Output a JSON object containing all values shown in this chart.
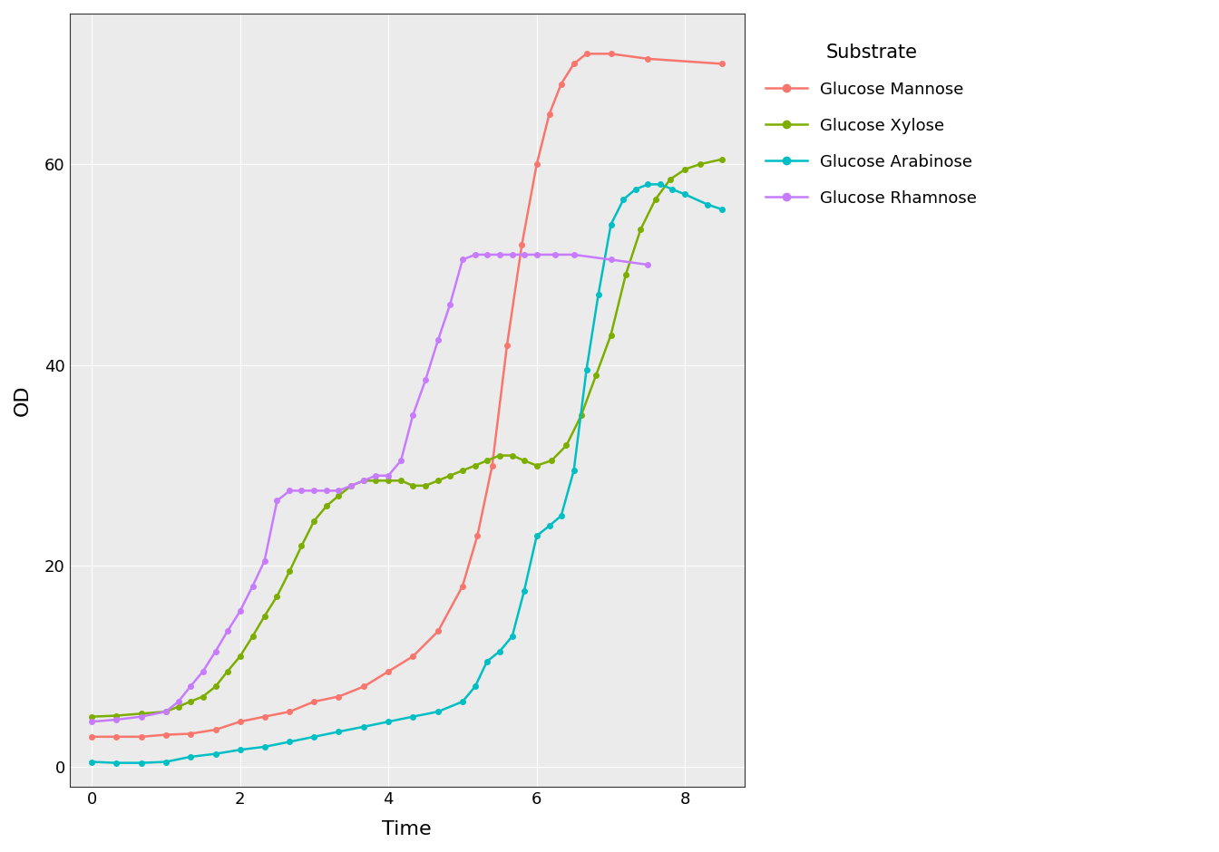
{
  "title": "",
  "xlabel": "Time",
  "ylabel": "OD",
  "legend_title": "Substrate",
  "xlim": [
    -0.3,
    8.8
  ],
  "ylim": [
    -2,
    75
  ],
  "xticks": [
    0,
    2,
    4,
    6,
    8
  ],
  "yticks": [
    0,
    20,
    40,
    60
  ],
  "background_color": "#FFFFFF",
  "panel_color": "#EBEBEB",
  "grid_color": "#FFFFFF",
  "series": {
    "Glucose Mannose": {
      "color": "#F8766D",
      "x": [
        0.0,
        0.33,
        0.67,
        1.0,
        1.33,
        1.67,
        2.0,
        2.33,
        2.67,
        3.0,
        3.33,
        3.67,
        4.0,
        4.33,
        4.67,
        5.0,
        5.2,
        5.4,
        5.6,
        5.8,
        6.0,
        6.17,
        6.33,
        6.5,
        6.67,
        7.0,
        7.5,
        8.5
      ],
      "y": [
        3.0,
        3.0,
        3.0,
        3.2,
        3.3,
        3.7,
        4.5,
        5.0,
        5.5,
        6.5,
        7.0,
        8.0,
        9.5,
        11.0,
        13.5,
        18.0,
        23.0,
        30.0,
        42.0,
        52.0,
        60.0,
        65.0,
        68.0,
        70.0,
        71.0,
        71.0,
        70.5,
        70.0
      ]
    },
    "Glucose Xylose": {
      "color": "#7CAE00",
      "x": [
        0.0,
        0.33,
        0.67,
        1.0,
        1.17,
        1.33,
        1.5,
        1.67,
        1.83,
        2.0,
        2.17,
        2.33,
        2.5,
        2.67,
        2.83,
        3.0,
        3.17,
        3.33,
        3.5,
        3.67,
        3.83,
        4.0,
        4.17,
        4.33,
        4.5,
        4.67,
        4.83,
        5.0,
        5.17,
        5.33,
        5.5,
        5.67,
        5.83,
        6.0,
        6.2,
        6.4,
        6.6,
        6.8,
        7.0,
        7.2,
        7.4,
        7.6,
        7.8,
        8.0,
        8.2,
        8.5
      ],
      "y": [
        5.0,
        5.1,
        5.3,
        5.5,
        6.0,
        6.5,
        7.0,
        8.0,
        9.5,
        11.0,
        13.0,
        15.0,
        17.0,
        19.5,
        22.0,
        24.5,
        26.0,
        27.0,
        28.0,
        28.5,
        28.5,
        28.5,
        28.5,
        28.0,
        28.0,
        28.5,
        29.0,
        29.5,
        30.0,
        30.5,
        31.0,
        31.0,
        30.5,
        30.0,
        30.5,
        32.0,
        35.0,
        39.0,
        43.0,
        49.0,
        53.5,
        56.5,
        58.5,
        59.5,
        60.0,
        60.5
      ]
    },
    "Glucose Arabinose": {
      "color": "#00BFC4",
      "x": [
        0.0,
        0.33,
        0.67,
        1.0,
        1.33,
        1.67,
        2.0,
        2.33,
        2.67,
        3.0,
        3.33,
        3.67,
        4.0,
        4.33,
        4.67,
        5.0,
        5.17,
        5.33,
        5.5,
        5.67,
        5.83,
        6.0,
        6.17,
        6.33,
        6.5,
        6.67,
        6.83,
        7.0,
        7.17,
        7.33,
        7.5,
        7.67,
        7.83,
        8.0,
        8.3,
        8.5
      ],
      "y": [
        0.5,
        0.4,
        0.4,
        0.5,
        1.0,
        1.3,
        1.7,
        2.0,
        2.5,
        3.0,
        3.5,
        4.0,
        4.5,
        5.0,
        5.5,
        6.5,
        8.0,
        10.5,
        11.5,
        13.0,
        17.5,
        23.0,
        24.0,
        25.0,
        29.5,
        39.5,
        47.0,
        54.0,
        56.5,
        57.5,
        58.0,
        58.0,
        57.5,
        57.0,
        56.0,
        55.5
      ]
    },
    "Glucose Rhamnose": {
      "color": "#C77CFF",
      "x": [
        0.0,
        0.33,
        0.67,
        1.0,
        1.17,
        1.33,
        1.5,
        1.67,
        1.83,
        2.0,
        2.17,
        2.33,
        2.5,
        2.67,
        2.83,
        3.0,
        3.17,
        3.33,
        3.5,
        3.67,
        3.83,
        4.0,
        4.17,
        4.33,
        4.5,
        4.67,
        4.83,
        5.0,
        5.17,
        5.33,
        5.5,
        5.67,
        5.83,
        6.0,
        6.25,
        6.5,
        7.0,
        7.5
      ],
      "y": [
        4.5,
        4.7,
        5.0,
        5.5,
        6.5,
        8.0,
        9.5,
        11.5,
        13.5,
        15.5,
        18.0,
        20.5,
        26.5,
        27.5,
        27.5,
        27.5,
        27.5,
        27.5,
        28.0,
        28.5,
        29.0,
        29.0,
        30.5,
        35.0,
        38.5,
        42.5,
        46.0,
        50.5,
        51.0,
        51.0,
        51.0,
        51.0,
        51.0,
        51.0,
        51.0,
        51.0,
        50.5,
        50.0
      ]
    }
  }
}
